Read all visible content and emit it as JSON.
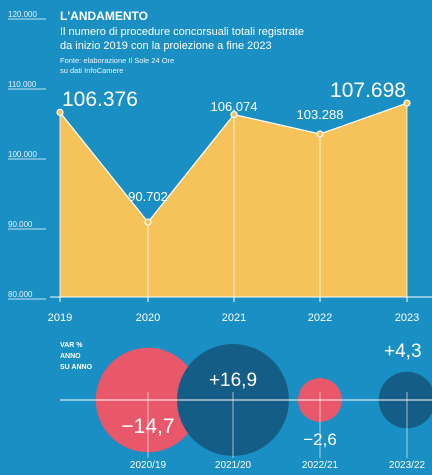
{
  "header": {
    "title": "L'ANDAMENTO",
    "subtitle_lines": [
      "Il numero di procedure concorsuali totali registrate",
      "da inizio 2019 con la proiezione a fine 2023"
    ],
    "source_lines": [
      "Fonte: elaborazione Il Sole 24 Ore",
      "su dati InfoCamere"
    ]
  },
  "colors": {
    "background": "#1a8fc4",
    "area": "#f6c35a",
    "negative": "#e8576a",
    "positive": "#135d86",
    "text": "#ffffff"
  },
  "chart_data": [
    {
      "type": "area",
      "title": "L'ANDAMENTO",
      "x": [
        "2019",
        "2020",
        "2021",
        "2022",
        "2023"
      ],
      "values": [
        106376,
        90702,
        106074,
        103288,
        107698
      ],
      "value_labels": [
        "106.376",
        "90.702",
        "106.074",
        "103.288",
        "107.698"
      ],
      "yticks": [
        80000,
        90000,
        100000,
        110000,
        120000
      ],
      "ytick_labels": [
        "80.000",
        "90.000",
        "100.000",
        "110.000",
        "120.000"
      ],
      "ylim": [
        80000,
        120000
      ],
      "grid": false,
      "legend": "none"
    },
    {
      "type": "bubble",
      "label_lines": [
        "VAR %",
        "ANNO",
        "SU ANNO"
      ],
      "categories": [
        "2020/19",
        "2021/20",
        "2022/21",
        "2023/22"
      ],
      "values": [
        -14.7,
        16.9,
        -2.6,
        4.3
      ],
      "value_labels": [
        "−14,7",
        "+16,9",
        "−2,6",
        "+4,3"
      ]
    }
  ]
}
